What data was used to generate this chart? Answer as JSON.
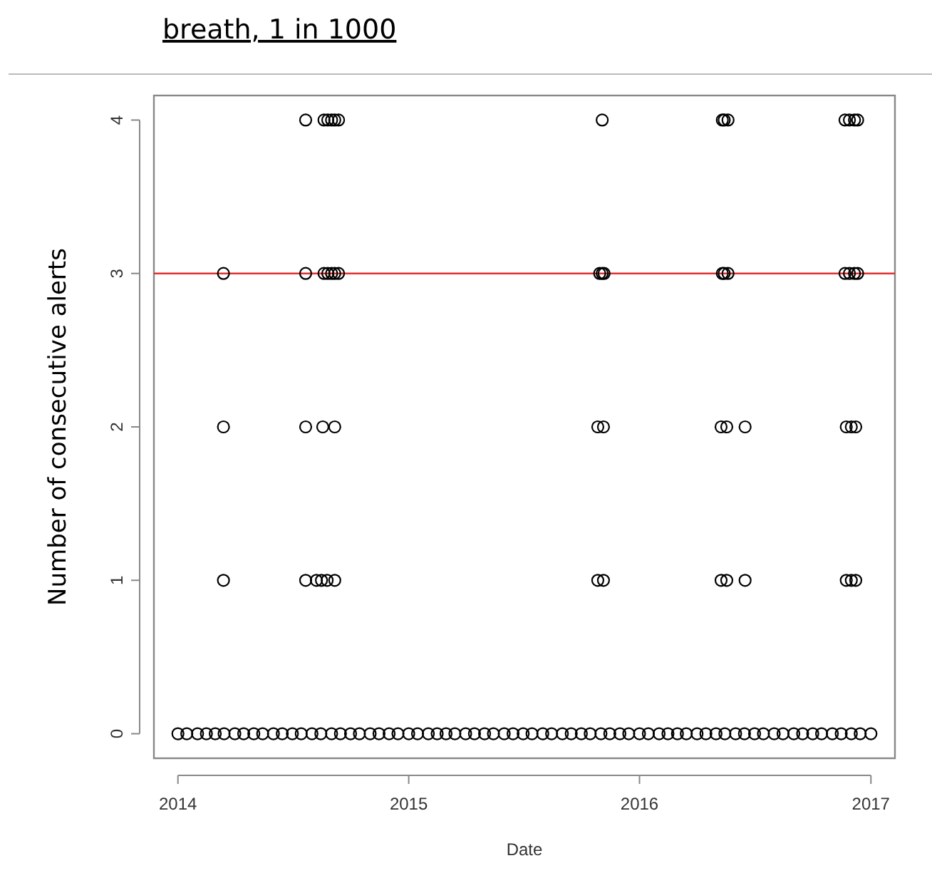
{
  "chart_data": {
    "type": "scatter",
    "title": "breath, 1 in 1000",
    "xlabel": "Date",
    "ylabel": "Number of consecutive alerts",
    "xlim": [
      "2013-11-24",
      "2017-02-08"
    ],
    "xticks": [
      "2014",
      "2015",
      "2016",
      "2017"
    ],
    "ylim": [
      -0.16,
      4.16
    ],
    "yticks": [
      0,
      1,
      2,
      3,
      4
    ],
    "marker": "circle",
    "grid": false,
    "ref_lines": [
      {
        "axis": "y",
        "value": 3,
        "color": "#e03030"
      }
    ],
    "series": [
      {
        "color": "#000000",
        "x": [
          "2014-01-01",
          "2014-01-15",
          "2014-02-01",
          "2014-02-15",
          "2014-03-01",
          "2014-03-15",
          "2014-04-01",
          "2014-04-15",
          "2014-05-01",
          "2014-05-15",
          "2014-06-01",
          "2014-06-15",
          "2014-07-01",
          "2014-07-15",
          "2014-08-01",
          "2014-08-15",
          "2014-09-01",
          "2014-09-15",
          "2014-10-01",
          "2014-10-15",
          "2014-11-01",
          "2014-11-15",
          "2014-12-01",
          "2014-12-15",
          "2015-01-01",
          "2015-01-15",
          "2015-02-01",
          "2015-02-15",
          "2015-03-01",
          "2015-03-15",
          "2015-04-01",
          "2015-04-15",
          "2015-05-01",
          "2015-05-15",
          "2015-06-01",
          "2015-06-15",
          "2015-07-01",
          "2015-07-15",
          "2015-08-01",
          "2015-08-15",
          "2015-09-01",
          "2015-09-15",
          "2015-10-01",
          "2015-10-15",
          "2015-11-01",
          "2015-11-15",
          "2015-12-01",
          "2015-12-15",
          "2016-01-01",
          "2016-01-15",
          "2016-02-01",
          "2016-02-15",
          "2016-03-01",
          "2016-03-15",
          "2016-04-01",
          "2016-04-15",
          "2016-05-01",
          "2016-05-15",
          "2016-06-01",
          "2016-06-15",
          "2016-07-01",
          "2016-07-15",
          "2016-08-01",
          "2016-08-15",
          "2016-09-01",
          "2016-09-15",
          "2016-10-01",
          "2016-10-15",
          "2016-11-01",
          "2016-11-15",
          "2016-12-01",
          "2016-12-15",
          "2017-01-01",
          "2014-03-14",
          "2014-07-22",
          "2014-08-08",
          "2014-08-16",
          "2014-08-25",
          "2014-09-06",
          "2015-10-27",
          "2015-11-05",
          "2016-05-09",
          "2016-05-18",
          "2016-06-16",
          "2016-11-23",
          "2016-12-01",
          "2016-12-08",
          "2014-03-14",
          "2014-07-22",
          "2014-08-18",
          "2014-09-06",
          "2015-10-27",
          "2015-11-05",
          "2016-05-09",
          "2016-05-18",
          "2016-06-16",
          "2016-11-23",
          "2016-12-01",
          "2016-12-08",
          "2014-03-14",
          "2014-07-22",
          "2014-08-20",
          "2014-08-26",
          "2014-09-01",
          "2014-09-06",
          "2014-09-12",
          "2015-10-30",
          "2015-11-03",
          "2015-11-06",
          "2016-05-11",
          "2016-05-14",
          "2016-05-20",
          "2016-11-21",
          "2016-11-28",
          "2016-12-06",
          "2016-12-11",
          "2014-07-22",
          "2014-08-20",
          "2014-08-26",
          "2014-09-01",
          "2014-09-06",
          "2014-09-12",
          "2015-11-03",
          "2016-05-11",
          "2016-05-14",
          "2016-05-20",
          "2016-11-21",
          "2016-11-28",
          "2016-12-06",
          "2016-12-11"
        ],
        "values": [
          0,
          0,
          0,
          0,
          0,
          0,
          0,
          0,
          0,
          0,
          0,
          0,
          0,
          0,
          0,
          0,
          0,
          0,
          0,
          0,
          0,
          0,
          0,
          0,
          0,
          0,
          0,
          0,
          0,
          0,
          0,
          0,
          0,
          0,
          0,
          0,
          0,
          0,
          0,
          0,
          0,
          0,
          0,
          0,
          0,
          0,
          0,
          0,
          0,
          0,
          0,
          0,
          0,
          0,
          0,
          0,
          0,
          0,
          0,
          0,
          0,
          0,
          0,
          0,
          0,
          0,
          0,
          0,
          0,
          0,
          0,
          0,
          0,
          1,
          1,
          1,
          1,
          1,
          1,
          1,
          1,
          1,
          1,
          1,
          1,
          1,
          1,
          2,
          2,
          2,
          2,
          2,
          2,
          2,
          2,
          2,
          2,
          2,
          2,
          3,
          3,
          3,
          3,
          3,
          3,
          3,
          3,
          3,
          3,
          3,
          3,
          3,
          3,
          3,
          3,
          3,
          4,
          4,
          4,
          4,
          4,
          4,
          4,
          4,
          4,
          4,
          4,
          4,
          4,
          4
        ]
      }
    ]
  }
}
